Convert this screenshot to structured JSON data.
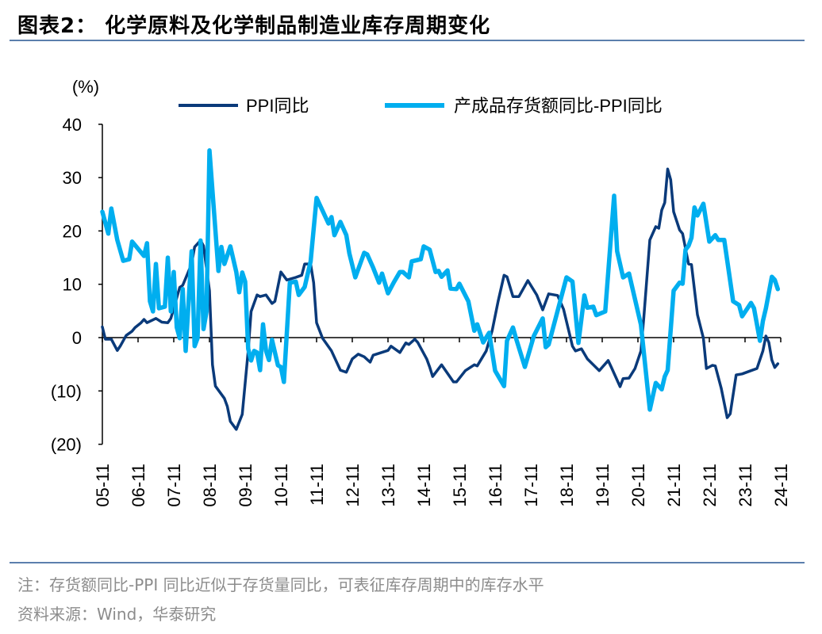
{
  "header": {
    "title": "图表2：  化学原料及化学制品制造业库存周期变化"
  },
  "footer": {
    "note": "注：存货额同比-PPI 同比近似于存货量同比，可表征库存周期中的库存水平",
    "source": "资料来源：Wind，华泰研究"
  },
  "chart_data": {
    "type": "line",
    "title": "",
    "ylabel": "(%)",
    "xlabel": "",
    "ylim": [
      -20,
      40
    ],
    "yticks": [
      40,
      30,
      20,
      10,
      0,
      -10,
      -20
    ],
    "ytick_labels": [
      "40",
      "30",
      "20",
      "10",
      "0",
      "(10)",
      "(20)"
    ],
    "xtick_labels": [
      "05-11",
      "06-11",
      "07-11",
      "08-11",
      "09-11",
      "10-11",
      "11-11",
      "12-11",
      "13-11",
      "14-11",
      "15-11",
      "16-11",
      "17-11",
      "18-11",
      "19-11",
      "20-11",
      "21-11",
      "22-11",
      "23-11",
      "24-11"
    ],
    "xlim": [
      "2005-11",
      "2024-11"
    ],
    "grid": false,
    "legend_position": "top",
    "series": [
      {
        "name": "PPI同比",
        "color": "#0a3a7a",
        "points": [
          [
            "2005-11",
            2.0
          ],
          [
            "2005-12",
            -0.3
          ],
          [
            "2006-02",
            -0.3
          ],
          [
            "2006-04",
            -2.4
          ],
          [
            "2006-05",
            -1.6
          ],
          [
            "2006-07",
            0.4
          ],
          [
            "2006-09",
            1.2
          ],
          [
            "2006-10",
            1.9
          ],
          [
            "2006-12",
            2.8
          ],
          [
            "2007-01",
            3.4
          ],
          [
            "2007-02",
            2.8
          ],
          [
            "2007-05",
            3.6
          ],
          [
            "2007-07",
            2.9
          ],
          [
            "2007-09",
            2.8
          ],
          [
            "2007-10",
            3.6
          ],
          [
            "2008-01",
            9.4
          ],
          [
            "2008-02",
            9.8
          ],
          [
            "2008-05",
            13.8
          ],
          [
            "2008-06",
            17.0
          ],
          [
            "2008-08",
            18.2
          ],
          [
            "2008-09",
            17.2
          ],
          [
            "2008-11",
            8.8
          ],
          [
            "2008-12",
            -5.1
          ],
          [
            "2009-01",
            -9.1
          ],
          [
            "2009-04",
            -11.4
          ],
          [
            "2009-05",
            -12.9
          ],
          [
            "2009-06",
            -15.7
          ],
          [
            "2009-08",
            -17.2
          ],
          [
            "2009-10",
            -14.4
          ],
          [
            "2009-12",
            -2.5
          ],
          [
            "2010-01",
            4.9
          ],
          [
            "2010-03",
            8.0
          ],
          [
            "2010-04",
            7.7
          ],
          [
            "2010-06",
            8.0
          ],
          [
            "2010-08",
            6.4
          ],
          [
            "2010-09",
            6.8
          ],
          [
            "2010-11",
            12.3
          ],
          [
            "2011-01",
            10.8
          ],
          [
            "2011-04",
            11.3
          ],
          [
            "2011-06",
            11.7
          ],
          [
            "2011-07",
            13.8
          ],
          [
            "2011-09",
            13.8
          ],
          [
            "2011-10",
            10.3
          ],
          [
            "2011-11",
            2.8
          ],
          [
            "2012-01",
            -0.1
          ],
          [
            "2012-04",
            -2.5
          ],
          [
            "2012-07",
            -6.1
          ],
          [
            "2012-09",
            -6.5
          ],
          [
            "2012-11",
            -4.0
          ],
          [
            "2013-01",
            -3.1
          ],
          [
            "2013-03",
            -3.6
          ],
          [
            "2013-05",
            -4.6
          ],
          [
            "2013-06",
            -3.3
          ],
          [
            "2013-11",
            -2.4
          ],
          [
            "2013-12",
            -1.6
          ],
          [
            "2014-03",
            -2.8
          ],
          [
            "2014-05",
            -1.0
          ],
          [
            "2014-06",
            -1.3
          ],
          [
            "2014-08",
            -0.3
          ],
          [
            "2014-09",
            -0.9
          ],
          [
            "2014-12",
            -4.0
          ],
          [
            "2015-01",
            -5.5
          ],
          [
            "2015-02",
            -7.3
          ],
          [
            "2015-05",
            -5.1
          ],
          [
            "2015-09",
            -8.3
          ],
          [
            "2015-10",
            -8.3
          ],
          [
            "2016-01",
            -6.2
          ],
          [
            "2016-04",
            -5.1
          ],
          [
            "2016-05",
            -5.3
          ],
          [
            "2016-08",
            -2.5
          ],
          [
            "2016-10",
            1.3
          ],
          [
            "2016-12",
            6.8
          ],
          [
            "2017-02",
            11.7
          ],
          [
            "2017-03",
            11.4
          ],
          [
            "2017-05",
            7.7
          ],
          [
            "2017-07",
            7.7
          ],
          [
            "2017-10",
            10.7
          ],
          [
            "2018-01",
            8.0
          ],
          [
            "2018-03",
            5.2
          ],
          [
            "2018-05",
            8.2
          ],
          [
            "2018-08",
            7.9
          ],
          [
            "2018-10",
            5.3
          ],
          [
            "2019-01",
            -1.6
          ],
          [
            "2019-02",
            -2.5
          ],
          [
            "2019-04",
            -2.1
          ],
          [
            "2019-06",
            -4.0
          ],
          [
            "2019-10",
            -6.2
          ],
          [
            "2020-01",
            -4.3
          ],
          [
            "2020-02",
            -5.5
          ],
          [
            "2020-05",
            -9.2
          ],
          [
            "2020-06",
            -7.7
          ],
          [
            "2020-08",
            -7.6
          ],
          [
            "2020-10",
            -5.8
          ],
          [
            "2020-12",
            -2.5
          ],
          [
            "2021-01",
            3.9
          ],
          [
            "2021-03",
            18.3
          ],
          [
            "2021-05",
            20.8
          ],
          [
            "2021-06",
            20.5
          ],
          [
            "2021-07",
            23.9
          ],
          [
            "2021-08",
            25.3
          ],
          [
            "2021-09",
            31.6
          ],
          [
            "2021-10",
            29.6
          ],
          [
            "2021-11",
            23.6
          ],
          [
            "2022-01",
            20.2
          ],
          [
            "2022-02",
            19.5
          ],
          [
            "2022-04",
            13.8
          ],
          [
            "2022-05",
            13.7
          ],
          [
            "2022-07",
            4.3
          ],
          [
            "2022-09",
            -0.1
          ],
          [
            "2022-10",
            -5.8
          ],
          [
            "2022-12",
            -5.2
          ],
          [
            "2023-01",
            -5.3
          ],
          [
            "2023-03",
            -9.5
          ],
          [
            "2023-05",
            -15.0
          ],
          [
            "2023-06",
            -14.3
          ],
          [
            "2023-08",
            -7.0
          ],
          [
            "2023-10",
            -6.8
          ],
          [
            "2024-01",
            -6.2
          ],
          [
            "2024-03",
            -5.8
          ],
          [
            "2024-05",
            -2.5
          ],
          [
            "2024-06",
            0.3
          ],
          [
            "2024-07",
            -0.9
          ],
          [
            "2024-08",
            -4.2
          ],
          [
            "2024-09",
            -5.6
          ],
          [
            "2024-10",
            -4.9
          ]
        ]
      },
      {
        "name": "产成品存货额同比-PPI同比",
        "color": "#00aeef",
        "points": [
          [
            "2005-11",
            23.6
          ],
          [
            "2006-01",
            19.5
          ],
          [
            "2006-02",
            24.2
          ],
          [
            "2006-04",
            18.3
          ],
          [
            "2006-06",
            14.4
          ],
          [
            "2006-08",
            14.7
          ],
          [
            "2006-09",
            18.0
          ],
          [
            "2007-01",
            15.3
          ],
          [
            "2007-02",
            17.7
          ],
          [
            "2007-03",
            6.8
          ],
          [
            "2007-04",
            4.9
          ],
          [
            "2007-05",
            13.8
          ],
          [
            "2007-06",
            5.5
          ],
          [
            "2007-08",
            5.8
          ],
          [
            "2007-09",
            15.0
          ],
          [
            "2007-10",
            4.9
          ],
          [
            "2007-11",
            12.3
          ],
          [
            "2007-12",
            1.9
          ],
          [
            "2008-01",
            -0.1
          ],
          [
            "2008-02",
            9.1
          ],
          [
            "2008-03",
            -2.5
          ],
          [
            "2008-05",
            16.2
          ],
          [
            "2008-06",
            -1.6
          ],
          [
            "2008-07",
            -0.1
          ],
          [
            "2008-08",
            18.2
          ],
          [
            "2008-09",
            1.6
          ],
          [
            "2008-10",
            4.9
          ],
          [
            "2008-11",
            35.1
          ],
          [
            "2009-02",
            12.5
          ],
          [
            "2009-03",
            17.0
          ],
          [
            "2009-04",
            13.8
          ],
          [
            "2009-06",
            17.1
          ],
          [
            "2009-08",
            12.3
          ],
          [
            "2009-09",
            8.5
          ],
          [
            "2009-10",
            12.2
          ],
          [
            "2009-11",
            10.5
          ],
          [
            "2009-12",
            -2.1
          ],
          [
            "2010-01",
            -4.3
          ],
          [
            "2010-02",
            -2.5
          ],
          [
            "2010-03",
            -2.8
          ],
          [
            "2010-04",
            -6.1
          ],
          [
            "2010-05",
            2.5
          ],
          [
            "2010-06",
            -2.5
          ],
          [
            "2010-07",
            -4.2
          ],
          [
            "2010-08",
            -0.4
          ],
          [
            "2010-10",
            -5.2
          ],
          [
            "2010-11",
            -5.5
          ],
          [
            "2010-12",
            -8.3
          ],
          [
            "2011-02",
            10.3
          ],
          [
            "2011-04",
            10.5
          ],
          [
            "2011-05",
            8.0
          ],
          [
            "2011-07",
            9.5
          ],
          [
            "2011-09",
            14.3
          ],
          [
            "2011-11",
            26.2
          ],
          [
            "2012-03",
            21.4
          ],
          [
            "2012-04",
            22.6
          ],
          [
            "2012-05",
            19.2
          ],
          [
            "2012-07",
            21.7
          ],
          [
            "2012-09",
            19.2
          ],
          [
            "2012-10",
            15.8
          ],
          [
            "2012-12",
            11.3
          ],
          [
            "2013-03",
            15.9
          ],
          [
            "2013-04",
            15.6
          ],
          [
            "2013-06",
            13.1
          ],
          [
            "2013-08",
            10.3
          ],
          [
            "2013-09",
            12.0
          ],
          [
            "2013-11",
            8.3
          ],
          [
            "2014-01",
            10.4
          ],
          [
            "2014-03",
            12.3
          ],
          [
            "2014-04",
            12.3
          ],
          [
            "2014-06",
            11.3
          ],
          [
            "2014-07",
            14.3
          ],
          [
            "2014-10",
            14.7
          ],
          [
            "2014-11",
            17.1
          ],
          [
            "2015-01",
            16.5
          ],
          [
            "2015-03",
            12.3
          ],
          [
            "2015-04",
            12.5
          ],
          [
            "2015-05",
            11.4
          ],
          [
            "2015-07",
            12.6
          ],
          [
            "2015-08",
            9.2
          ],
          [
            "2015-10",
            9.1
          ],
          [
            "2015-11",
            10.1
          ],
          [
            "2016-02",
            6.8
          ],
          [
            "2016-04",
            1.3
          ],
          [
            "2016-05",
            2.5
          ],
          [
            "2016-07",
            -0.9
          ],
          [
            "2016-09",
            0.9
          ],
          [
            "2016-11",
            -6.2
          ],
          [
            "2017-02",
            -9.1
          ],
          [
            "2017-03",
            -0.6
          ],
          [
            "2017-05",
            1.9
          ],
          [
            "2017-06",
            -0.1
          ],
          [
            "2017-09",
            -5.5
          ],
          [
            "2017-12",
            0.3
          ],
          [
            "2018-03",
            3.6
          ],
          [
            "2018-04",
            -1.8
          ],
          [
            "2018-05",
            -1.3
          ],
          [
            "2018-11",
            11.3
          ],
          [
            "2019-01",
            10.5
          ],
          [
            "2019-03",
            -1.0
          ],
          [
            "2019-05",
            7.9
          ],
          [
            "2019-06",
            5.6
          ],
          [
            "2019-08",
            5.8
          ],
          [
            "2019-09",
            4.2
          ],
          [
            "2019-12",
            4.9
          ],
          [
            "2020-03",
            26.6
          ],
          [
            "2020-04",
            16.2
          ],
          [
            "2020-06",
            11.3
          ],
          [
            "2020-08",
            12.0
          ],
          [
            "2020-12",
            2.4
          ],
          [
            "2021-03",
            -13.5
          ],
          [
            "2021-05",
            -8.5
          ],
          [
            "2021-07",
            -9.7
          ],
          [
            "2021-08",
            -7.3
          ],
          [
            "2021-09",
            -6.1
          ],
          [
            "2021-11",
            8.8
          ],
          [
            "2022-01",
            10.3
          ],
          [
            "2022-02",
            10.1
          ],
          [
            "2022-03",
            16.5
          ],
          [
            "2022-04",
            17.2
          ],
          [
            "2022-05",
            18.7
          ],
          [
            "2022-06",
            24.4
          ],
          [
            "2022-07",
            22.9
          ],
          [
            "2022-09",
            25.1
          ],
          [
            "2022-11",
            18.0
          ],
          [
            "2023-01",
            19.2
          ],
          [
            "2023-02",
            18.3
          ],
          [
            "2023-04",
            18.3
          ],
          [
            "2023-07",
            6.8
          ],
          [
            "2023-09",
            6.1
          ],
          [
            "2023-10",
            4.0
          ],
          [
            "2024-01",
            6.5
          ],
          [
            "2024-02",
            5.5
          ],
          [
            "2024-04",
            -0.6
          ],
          [
            "2024-05",
            3.1
          ],
          [
            "2024-06",
            5.5
          ],
          [
            "2024-08",
            11.4
          ],
          [
            "2024-09",
            10.8
          ],
          [
            "2024-10",
            9.1
          ]
        ]
      }
    ]
  }
}
